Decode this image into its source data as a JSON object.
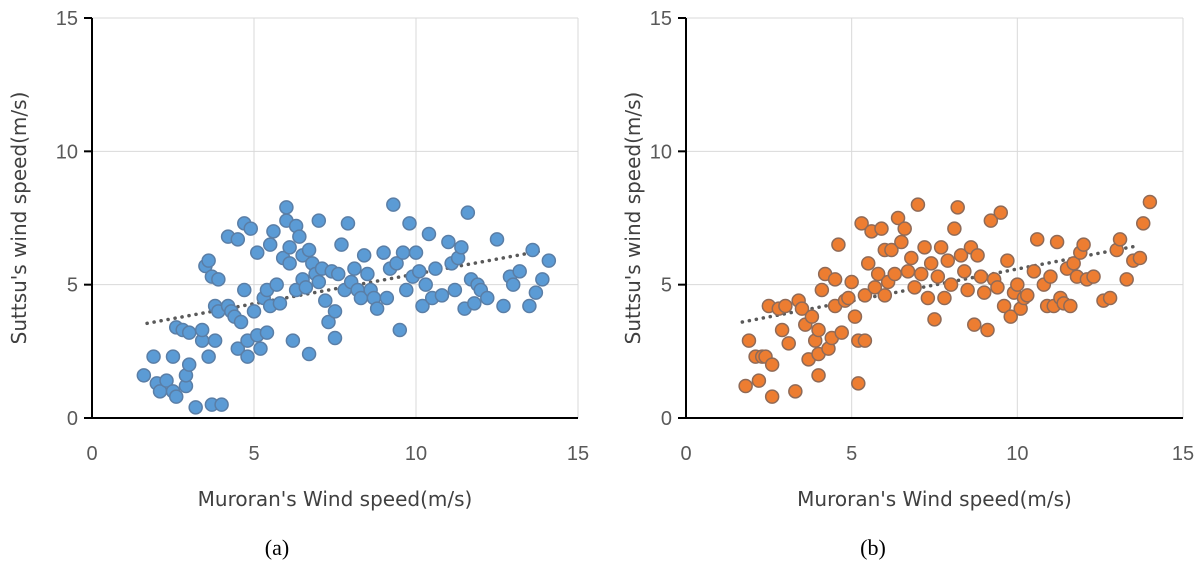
{
  "chart_data": [
    {
      "type": "scatter",
      "caption": "(a)",
      "xlabel": "Muroran's Wind speed(m/s)",
      "ylabel": "Suttsu's wind speed(m/s)",
      "xlim": [
        0,
        15
      ],
      "ylim": [
        0,
        15
      ],
      "xticks": [
        "0",
        "5",
        "10",
        "15"
      ],
      "yticks": [
        "0",
        "5",
        "10",
        "15"
      ],
      "grid": true,
      "marker_color": "#5B9BD5",
      "marker_edge": "#5A7EA6",
      "trendline": {
        "style": "dotted",
        "color": "#595959",
        "x": [
          1.7,
          13.8
        ],
        "y": [
          3.55,
          6.25
        ]
      },
      "points": [
        [
          1.6,
          1.6
        ],
        [
          1.9,
          2.3
        ],
        [
          2.0,
          1.3
        ],
        [
          2.1,
          1.0
        ],
        [
          2.3,
          1.4
        ],
        [
          2.5,
          2.3
        ],
        [
          2.5,
          1.0
        ],
        [
          2.6,
          0.8
        ],
        [
          2.6,
          3.4
        ],
        [
          2.8,
          3.3
        ],
        [
          2.9,
          1.2
        ],
        [
          2.9,
          1.6
        ],
        [
          3.0,
          2.0
        ],
        [
          3.0,
          3.2
        ],
        [
          3.2,
          0.4
        ],
        [
          3.4,
          2.9
        ],
        [
          3.4,
          3.3
        ],
        [
          3.5,
          5.7
        ],
        [
          3.6,
          2.3
        ],
        [
          3.6,
          5.9
        ],
        [
          3.7,
          5.3
        ],
        [
          3.7,
          0.5
        ],
        [
          3.8,
          4.2
        ],
        [
          3.8,
          2.9
        ],
        [
          3.9,
          5.2
        ],
        [
          3.9,
          4.0
        ],
        [
          4.0,
          0.5
        ],
        [
          4.2,
          6.8
        ],
        [
          4.2,
          4.2
        ],
        [
          4.3,
          4.0
        ],
        [
          4.4,
          3.8
        ],
        [
          4.5,
          2.6
        ],
        [
          4.5,
          6.7
        ],
        [
          4.6,
          3.6
        ],
        [
          4.7,
          7.3
        ],
        [
          4.7,
          4.8
        ],
        [
          4.8,
          2.9
        ],
        [
          4.8,
          2.3
        ],
        [
          4.9,
          7.1
        ],
        [
          5.0,
          4.0
        ],
        [
          5.1,
          6.2
        ],
        [
          5.1,
          3.1
        ],
        [
          5.2,
          2.6
        ],
        [
          5.3,
          4.5
        ],
        [
          5.4,
          4.8
        ],
        [
          5.4,
          3.2
        ],
        [
          5.5,
          6.5
        ],
        [
          5.5,
          4.2
        ],
        [
          5.6,
          7.0
        ],
        [
          5.7,
          5.0
        ],
        [
          5.8,
          4.3
        ],
        [
          5.9,
          6.0
        ],
        [
          6.0,
          7.4
        ],
        [
          6.0,
          7.9
        ],
        [
          6.1,
          5.8
        ],
        [
          6.1,
          6.4
        ],
        [
          6.2,
          2.9
        ],
        [
          6.3,
          4.8
        ],
        [
          6.3,
          7.2
        ],
        [
          6.4,
          6.8
        ],
        [
          6.5,
          5.2
        ],
        [
          6.5,
          6.1
        ],
        [
          6.6,
          4.9
        ],
        [
          6.7,
          6.3
        ],
        [
          6.7,
          2.4
        ],
        [
          6.8,
          5.8
        ],
        [
          6.9,
          5.4
        ],
        [
          7.0,
          5.1
        ],
        [
          7.0,
          7.4
        ],
        [
          7.1,
          5.6
        ],
        [
          7.2,
          4.4
        ],
        [
          7.3,
          3.6
        ],
        [
          7.4,
          5.5
        ],
        [
          7.5,
          4.0
        ],
        [
          7.5,
          3.0
        ],
        [
          7.6,
          5.4
        ],
        [
          7.7,
          6.5
        ],
        [
          7.8,
          4.8
        ],
        [
          7.9,
          7.3
        ],
        [
          8.0,
          5.1
        ],
        [
          8.1,
          5.6
        ],
        [
          8.2,
          4.8
        ],
        [
          8.3,
          4.5
        ],
        [
          8.4,
          6.1
        ],
        [
          8.5,
          5.4
        ],
        [
          8.6,
          4.8
        ],
        [
          8.7,
          4.5
        ],
        [
          8.8,
          4.1
        ],
        [
          9.0,
          6.2
        ],
        [
          9.1,
          4.5
        ],
        [
          9.2,
          5.6
        ],
        [
          9.3,
          8.0
        ],
        [
          9.4,
          5.8
        ],
        [
          9.5,
          3.3
        ],
        [
          9.6,
          6.2
        ],
        [
          9.7,
          4.8
        ],
        [
          9.8,
          7.3
        ],
        [
          9.9,
          5.3
        ],
        [
          10.0,
          6.2
        ],
        [
          10.1,
          5.5
        ],
        [
          10.2,
          4.2
        ],
        [
          10.3,
          5.0
        ],
        [
          10.4,
          6.9
        ],
        [
          10.5,
          4.5
        ],
        [
          10.6,
          5.6
        ],
        [
          10.8,
          4.6
        ],
        [
          11.0,
          6.6
        ],
        [
          11.1,
          5.8
        ],
        [
          11.2,
          4.8
        ],
        [
          11.3,
          6.0
        ],
        [
          11.4,
          6.4
        ],
        [
          11.5,
          4.1
        ],
        [
          11.6,
          7.7
        ],
        [
          11.7,
          5.2
        ],
        [
          11.8,
          4.3
        ],
        [
          11.9,
          5.0
        ],
        [
          12.0,
          4.8
        ],
        [
          12.2,
          4.5
        ],
        [
          12.5,
          6.7
        ],
        [
          12.7,
          4.2
        ],
        [
          12.9,
          5.3
        ],
        [
          13.0,
          5.0
        ],
        [
          13.2,
          5.5
        ],
        [
          13.5,
          4.2
        ],
        [
          13.6,
          6.3
        ],
        [
          13.7,
          4.7
        ],
        [
          13.9,
          5.2
        ],
        [
          14.1,
          5.9
        ]
      ]
    },
    {
      "type": "scatter",
      "caption": "(b)",
      "xlabel": "Muroran's Wind speed(m/s)",
      "ylabel": "Suttsu's wind speed(m/s)",
      "xlim": [
        0,
        15
      ],
      "ylim": [
        0,
        15
      ],
      "xticks": [
        "0",
        "5",
        "10",
        "15"
      ],
      "yticks": [
        "0",
        "5",
        "10",
        "15"
      ],
      "grid": true,
      "marker_color": "#ED7D31",
      "marker_edge": "#8F6A57",
      "trendline": {
        "style": "dotted",
        "color": "#595959",
        "x": [
          1.7,
          13.6
        ],
        "y": [
          3.6,
          6.45
        ]
      },
      "points": [
        [
          1.8,
          1.2
        ],
        [
          1.9,
          2.9
        ],
        [
          2.1,
          2.3
        ],
        [
          2.2,
          1.4
        ],
        [
          2.3,
          2.3
        ],
        [
          2.4,
          2.3
        ],
        [
          2.5,
          4.2
        ],
        [
          2.6,
          0.8
        ],
        [
          2.6,
          2.0
        ],
        [
          2.8,
          4.1
        ],
        [
          2.9,
          3.3
        ],
        [
          3.0,
          4.2
        ],
        [
          3.1,
          2.8
        ],
        [
          3.3,
          1.0
        ],
        [
          3.4,
          4.4
        ],
        [
          3.5,
          4.1
        ],
        [
          3.6,
          3.5
        ],
        [
          3.7,
          2.2
        ],
        [
          3.8,
          3.8
        ],
        [
          3.9,
          2.9
        ],
        [
          4.0,
          1.6
        ],
        [
          4.0,
          2.4
        ],
        [
          4.0,
          3.3
        ],
        [
          4.1,
          4.8
        ],
        [
          4.2,
          5.4
        ],
        [
          4.3,
          2.6
        ],
        [
          4.4,
          3.0
        ],
        [
          4.5,
          5.2
        ],
        [
          4.5,
          4.2
        ],
        [
          4.6,
          6.5
        ],
        [
          4.7,
          3.2
        ],
        [
          4.8,
          4.4
        ],
        [
          4.9,
          4.5
        ],
        [
          5.0,
          5.1
        ],
        [
          5.1,
          3.8
        ],
        [
          5.2,
          2.9
        ],
        [
          5.2,
          1.3
        ],
        [
          5.3,
          7.3
        ],
        [
          5.4,
          4.6
        ],
        [
          5.4,
          2.9
        ],
        [
          5.5,
          5.8
        ],
        [
          5.6,
          7.0
        ],
        [
          5.7,
          4.9
        ],
        [
          5.8,
          5.4
        ],
        [
          5.9,
          7.1
        ],
        [
          6.0,
          4.6
        ],
        [
          6.0,
          6.3
        ],
        [
          6.1,
          5.1
        ],
        [
          6.2,
          6.3
        ],
        [
          6.3,
          5.4
        ],
        [
          6.4,
          7.5
        ],
        [
          6.5,
          6.6
        ],
        [
          6.6,
          7.1
        ],
        [
          6.7,
          5.5
        ],
        [
          6.8,
          6.0
        ],
        [
          6.9,
          4.9
        ],
        [
          7.0,
          8.0
        ],
        [
          7.1,
          5.4
        ],
        [
          7.2,
          6.4
        ],
        [
          7.3,
          4.5
        ],
        [
          7.4,
          5.8
        ],
        [
          7.5,
          3.7
        ],
        [
          7.6,
          5.3
        ],
        [
          7.7,
          6.4
        ],
        [
          7.8,
          4.5
        ],
        [
          7.9,
          5.9
        ],
        [
          8.0,
          5.0
        ],
        [
          8.1,
          7.1
        ],
        [
          8.2,
          7.9
        ],
        [
          8.3,
          6.1
        ],
        [
          8.4,
          5.5
        ],
        [
          8.5,
          4.8
        ],
        [
          8.6,
          6.4
        ],
        [
          8.7,
          3.5
        ],
        [
          8.8,
          6.1
        ],
        [
          8.9,
          5.3
        ],
        [
          9.0,
          4.7
        ],
        [
          9.1,
          3.3
        ],
        [
          9.2,
          7.4
        ],
        [
          9.3,
          5.2
        ],
        [
          9.4,
          4.9
        ],
        [
          9.5,
          7.7
        ],
        [
          9.6,
          4.2
        ],
        [
          9.7,
          5.9
        ],
        [
          9.8,
          3.8
        ],
        [
          9.9,
          4.7
        ],
        [
          10.0,
          5.0
        ],
        [
          10.1,
          4.1
        ],
        [
          10.2,
          4.5
        ],
        [
          10.3,
          4.6
        ],
        [
          10.5,
          5.5
        ],
        [
          10.6,
          6.7
        ],
        [
          10.8,
          5.0
        ],
        [
          10.9,
          4.2
        ],
        [
          11.0,
          5.3
        ],
        [
          11.1,
          4.2
        ],
        [
          11.2,
          6.6
        ],
        [
          11.3,
          4.5
        ],
        [
          11.4,
          4.3
        ],
        [
          11.5,
          5.6
        ],
        [
          11.6,
          4.2
        ],
        [
          11.7,
          5.8
        ],
        [
          11.8,
          5.3
        ],
        [
          11.9,
          6.2
        ],
        [
          12.0,
          6.5
        ],
        [
          12.1,
          5.2
        ],
        [
          12.3,
          5.3
        ],
        [
          12.6,
          4.4
        ],
        [
          12.8,
          4.5
        ],
        [
          13.0,
          6.3
        ],
        [
          13.1,
          6.7
        ],
        [
          13.3,
          5.2
        ],
        [
          13.5,
          5.9
        ],
        [
          13.7,
          6.0
        ],
        [
          13.8,
          7.3
        ],
        [
          14.0,
          8.1
        ]
      ]
    }
  ]
}
